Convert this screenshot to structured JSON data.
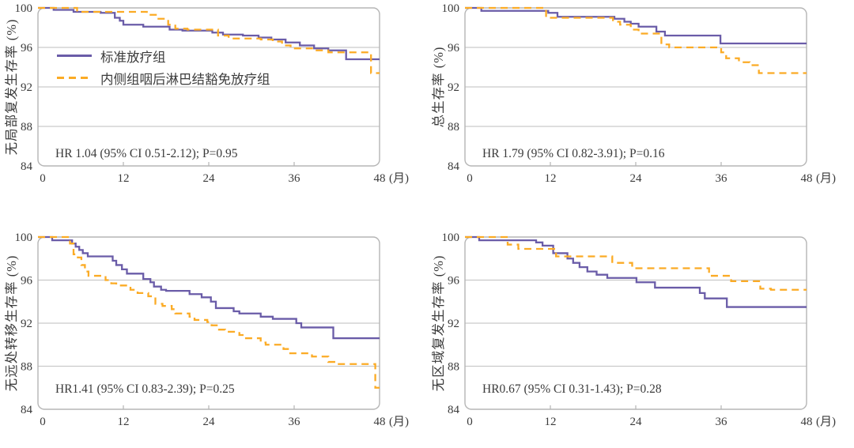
{
  "colors": {
    "standard_line": "#6A5CA8",
    "sparing_line": "#FBAB25",
    "gridline": "#c9c9c9",
    "plot_border": "#b5b5b5",
    "text": "#3b3b3b"
  },
  "legend": {
    "items": [
      {
        "label": "标准放疗组",
        "style": "solid"
      },
      {
        "label": "内侧组咽后淋巴结豁免放疗组",
        "style": "dashed"
      }
    ]
  },
  "axes": {
    "xlim": [
      0,
      48
    ],
    "ylim": [
      84,
      100
    ],
    "x_ticks": [
      0,
      12,
      24,
      36,
      48
    ],
    "y_ticks": [
      100,
      96,
      92,
      88,
      84
    ],
    "gridlines": [
      96,
      92,
      88
    ],
    "x_unit": "(月)"
  },
  "chart_data": [
    {
      "type": "line",
      "subtype": "kaplan-meier-step",
      "ylabel": "无局部复发生存率 (%)",
      "hr_text": "HR 1.04 (95% CI 0.51-2.12); P=0.95",
      "xlim": [
        0,
        48
      ],
      "ylim": [
        84,
        100
      ],
      "series": [
        {
          "name": "标准放疗组",
          "color": "#6A5CA8",
          "dash": false,
          "points": [
            [
              0,
              100
            ],
            [
              2.2,
              99.8
            ],
            [
              5,
              99.6
            ],
            [
              8.8,
              99.5
            ],
            [
              10.8,
              99.0
            ],
            [
              11.5,
              98.7
            ],
            [
              12,
              98.3
            ],
            [
              14.8,
              98.1
            ],
            [
              18.5,
              97.8
            ],
            [
              20.3,
              97.7
            ],
            [
              24.5,
              97.5
            ],
            [
              26,
              97.3
            ],
            [
              28.8,
              97.2
            ],
            [
              31,
              97.0
            ],
            [
              32.8,
              96.8
            ],
            [
              34.8,
              96.5
            ],
            [
              36.8,
              96.2
            ],
            [
              38.8,
              95.9
            ],
            [
              40.8,
              95.7
            ],
            [
              43.3,
              94.8
            ],
            [
              48,
              94.8
            ]
          ]
        },
        {
          "name": "内侧组咽后淋巴结豁免放疗组",
          "color": "#FBAB25",
          "dash": true,
          "points": [
            [
              0,
              100
            ],
            [
              5.5,
              99.6
            ],
            [
              15.3,
              99.3
            ],
            [
              16.8,
              98.9
            ],
            [
              18.3,
              98.3
            ],
            [
              19.3,
              97.9
            ],
            [
              21,
              97.8
            ],
            [
              25.3,
              97.2
            ],
            [
              26.8,
              96.9
            ],
            [
              31.3,
              96.8
            ],
            [
              33,
              96.6
            ],
            [
              34.3,
              96.2
            ],
            [
              35.5,
              95.9
            ],
            [
              39,
              95.7
            ],
            [
              40.8,
              95.5
            ],
            [
              46.8,
              93.4
            ],
            [
              48,
              93.4
            ]
          ]
        }
      ]
    },
    {
      "type": "line",
      "subtype": "kaplan-meier-step",
      "ylabel": "总生存率 (%)",
      "hr_text": "HR 1.79 (95% CI 0.82-3.91); P=0.16",
      "xlim": [
        0,
        48
      ],
      "ylim": [
        84,
        100
      ],
      "series": [
        {
          "name": "标准放疗组",
          "color": "#6A5CA8",
          "dash": false,
          "points": [
            [
              0,
              100
            ],
            [
              2.3,
              99.7
            ],
            [
              11.7,
              99.5
            ],
            [
              13,
              99.1
            ],
            [
              21,
              98.9
            ],
            [
              22.4,
              98.6
            ],
            [
              23.3,
              98.4
            ],
            [
              24.4,
              98.1
            ],
            [
              26.9,
              97.6
            ],
            [
              28.1,
              97.2
            ],
            [
              35.9,
              96.4
            ],
            [
              48,
              96.4
            ]
          ]
        },
        {
          "name": "内侧组咽后淋巴结豁免放疗组",
          "color": "#FBAB25",
          "dash": true,
          "points": [
            [
              0,
              100
            ],
            [
              11.4,
              99.0
            ],
            [
              20.8,
              98.6
            ],
            [
              21.8,
              98.3
            ],
            [
              23.3,
              97.8
            ],
            [
              24.4,
              97.4
            ],
            [
              27.6,
              96.3
            ],
            [
              28.7,
              96.0
            ],
            [
              36,
              95.5
            ],
            [
              36.7,
              94.9
            ],
            [
              38.5,
              94.5
            ],
            [
              40,
              94.2
            ],
            [
              41.3,
              93.4
            ],
            [
              48,
              93.4
            ]
          ]
        }
      ]
    },
    {
      "type": "line",
      "subtype": "kaplan-meier-step",
      "ylabel": "无远处转移生存率 (%)",
      "hr_text": "HR1.41 (95% CI 0.83-2.39); P=0.25",
      "xlim": [
        0,
        48
      ],
      "ylim": [
        84,
        100
      ],
      "series": [
        {
          "name": "标准放疗组",
          "color": "#6A5CA8",
          "dash": false,
          "points": [
            [
              0,
              100
            ],
            [
              2,
              99.7
            ],
            [
              4.8,
              99.4
            ],
            [
              5.3,
              99.1
            ],
            [
              5.8,
              98.8
            ],
            [
              6.3,
              98.5
            ],
            [
              7,
              98.2
            ],
            [
              10.5,
              97.8
            ],
            [
              11,
              97.4
            ],
            [
              11.8,
              97.0
            ],
            [
              12.5,
              96.6
            ],
            [
              14.8,
              96.1
            ],
            [
              15.8,
              95.8
            ],
            [
              16.3,
              95.4
            ],
            [
              17.3,
              95.1
            ],
            [
              18,
              95.0
            ],
            [
              21.3,
              94.7
            ],
            [
              23,
              94.4
            ],
            [
              24.3,
              94.0
            ],
            [
              25,
              93.4
            ],
            [
              27.5,
              93.1
            ],
            [
              28.3,
              92.9
            ],
            [
              31.3,
              92.6
            ],
            [
              33,
              92.4
            ],
            [
              36.3,
              92.0
            ],
            [
              37,
              91.6
            ],
            [
              41.5,
              90.6
            ],
            [
              48,
              90.6
            ]
          ]
        },
        {
          "name": "内侧组咽后淋巴结豁免放疗组",
          "color": "#FBAB25",
          "dash": true,
          "points": [
            [
              0,
              100
            ],
            [
              4.5,
              99.4
            ],
            [
              5,
              98.4
            ],
            [
              5.6,
              98.1
            ],
            [
              6.1,
              97.4
            ],
            [
              6.6,
              96.8
            ],
            [
              7.1,
              96.4
            ],
            [
              9.5,
              96.0
            ],
            [
              10.3,
              95.7
            ],
            [
              11,
              95.5
            ],
            [
              13,
              95.1
            ],
            [
              14,
              94.8
            ],
            [
              15.5,
              94.5
            ],
            [
              16.5,
              93.8
            ],
            [
              17.5,
              93.6
            ],
            [
              18.8,
              93.3
            ],
            [
              19.3,
              92.9
            ],
            [
              21.3,
              92.6
            ],
            [
              22,
              92.3
            ],
            [
              23.8,
              92.1
            ],
            [
              24.4,
              91.8
            ],
            [
              25.3,
              91.4
            ],
            [
              26.3,
              91.2
            ],
            [
              28.3,
              90.9
            ],
            [
              29,
              90.6
            ],
            [
              31.3,
              90.2
            ],
            [
              32,
              90.0
            ],
            [
              34.5,
              89.6
            ],
            [
              35.3,
              89.2
            ],
            [
              38.5,
              88.9
            ],
            [
              40.8,
              88.4
            ],
            [
              41.8,
              88.2
            ],
            [
              47.4,
              86.0
            ],
            [
              48,
              86.0
            ]
          ]
        }
      ]
    },
    {
      "type": "line",
      "subtype": "kaplan-meier-step",
      "ylabel": "无区域复发生存率 (%)",
      "hr_text": "HR0.67 (95% CI 0.31-1.43); P=0.28",
      "xlim": [
        0,
        48
      ],
      "ylim": [
        84,
        100
      ],
      "series": [
        {
          "name": "标准放疗组",
          "color": "#6A5CA8",
          "dash": false,
          "points": [
            [
              0,
              100
            ],
            [
              2,
              99.7
            ],
            [
              10,
              99.5
            ],
            [
              10.9,
              99.2
            ],
            [
              12.4,
              98.5
            ],
            [
              14.4,
              98.0
            ],
            [
              15.2,
              97.6
            ],
            [
              16.1,
              97.2
            ],
            [
              17.2,
              96.8
            ],
            [
              18.5,
              96.5
            ],
            [
              20,
              96.2
            ],
            [
              24.1,
              95.8
            ],
            [
              26.7,
              95.3
            ],
            [
              33,
              94.8
            ],
            [
              33.7,
              94.3
            ],
            [
              36.8,
              93.5
            ],
            [
              48,
              93.5
            ]
          ]
        },
        {
          "name": "内侧组咽后淋巴结豁免放疗组",
          "color": "#FBAB25",
          "dash": true,
          "points": [
            [
              0,
              100
            ],
            [
              6,
              99.3
            ],
            [
              7.5,
              98.9
            ],
            [
              12.8,
              98.2
            ],
            [
              20.7,
              97.6
            ],
            [
              23.5,
              97.1
            ],
            [
              34.3,
              96.4
            ],
            [
              37.4,
              95.9
            ],
            [
              41.5,
              95.2
            ],
            [
              43,
              95.1
            ],
            [
              48,
              95.1
            ]
          ]
        }
      ]
    }
  ]
}
